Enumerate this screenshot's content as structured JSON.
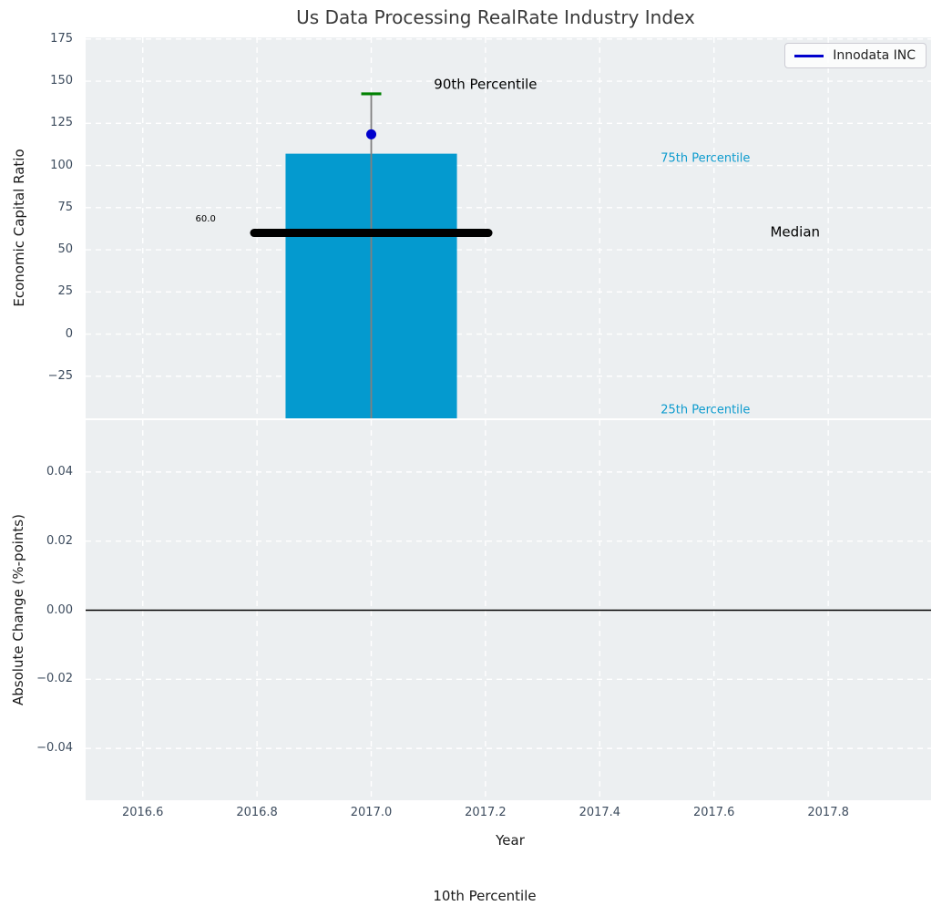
{
  "colors": {
    "axes_bg": "#eceff1",
    "grid": "#ffffff",
    "bar": "#049acf",
    "cyan_text": "#0d9bce",
    "green_cap": "#008000",
    "point_blue": "#0000cd",
    "median_black": "#000000",
    "whisker_gray": "#808080",
    "tick_text": "#3d4c5e",
    "title_text": "#3a3a3a"
  },
  "footer": {
    "label": "10th Percentile"
  },
  "chart_data": [
    {
      "type": "bar",
      "title": "Us Data Processing RealRate Industry Index",
      "xlabel": "Year",
      "ylabel": "Economic Capital Ratio",
      "xlim": [
        2016.5,
        2017.98
      ],
      "ylim": [
        -50,
        176
      ],
      "xtick_labels": [
        "2016.6",
        "2016.8",
        "2017.0",
        "2017.2",
        "2017.4",
        "2017.6",
        "2017.8"
      ],
      "ytick_labels": [
        "175",
        "150",
        "125",
        "100",
        "75",
        "50",
        "25",
        "0",
        "−25"
      ],
      "grid": "white dashed gridlines on gray background",
      "legend": {
        "label": "Innodata INC",
        "location": "upper right"
      },
      "bar": {
        "x_center": 2017.0,
        "x_width": 0.3,
        "top": 107,
        "bottom": -50,
        "bottom_clipped": true
      },
      "whisker": {
        "x": 2017.0,
        "top": 142.5,
        "bottom": -50,
        "bottom_clipped": true
      },
      "percentiles": {
        "p90": 142.5,
        "p75": 107,
        "median": 60.0,
        "p25": "below visible axis (bar clipped at bottom)",
        "p10": "below chart (label shown at figure bottom)"
      },
      "median_line": {
        "y": 60.0,
        "x_start": 2016.795,
        "x_end": 2017.205,
        "value_label": "60.0"
      },
      "company_point": {
        "name": "Innodata INC",
        "x": 2017.0,
        "y": 118.5
      },
      "annotations": [
        {
          "text": "90th Percentile",
          "x": 2017.2,
          "y": 148,
          "color": "#000000",
          "font": 15
        },
        {
          "text": "75th Percentile",
          "x": 2017.585,
          "y": 104,
          "color": "#0d9bce",
          "font": 13
        },
        {
          "text": "Median",
          "x": 2017.742,
          "y": 60.5,
          "color": "#000000",
          "font": 15
        },
        {
          "text": "25th Percentile",
          "x": 2017.585,
          "y": -45,
          "color": "#0d9bce",
          "font": 13
        },
        {
          "text": "60.0",
          "x": 2016.71,
          "y": 68,
          "color": "#000000",
          "font": 10
        }
      ]
    },
    {
      "type": "line",
      "ylabel": "Absolute Change (%-points)",
      "ylim": [
        -0.055,
        0.055
      ],
      "ytick_labels": [
        "0.04",
        "0.02",
        "0.00",
        "−0.02",
        "−0.04"
      ],
      "zero_line_y": 0.0,
      "series": []
    }
  ]
}
